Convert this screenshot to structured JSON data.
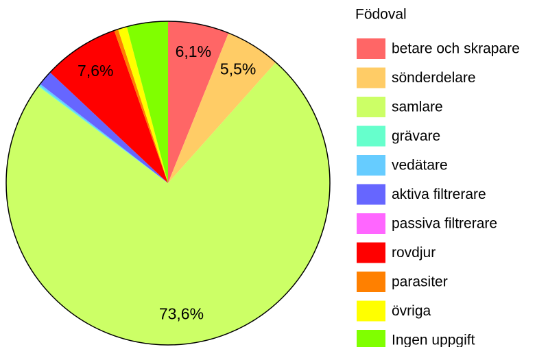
{
  "chart_data": {
    "type": "pie",
    "legend_title": "Födoval",
    "categories": [
      "betare och skrapare",
      "sönderdelare",
      "samlare",
      "grävare",
      "vedätare",
      "aktiva filtrerare",
      "passiva filtrerare",
      "rovdjur",
      "parasiter",
      "övriga",
      "Ingen uppgift"
    ],
    "values": [
      6.1,
      5.5,
      73.6,
      0.1,
      0.2,
      1.5,
      0,
      7.6,
      0.4,
      0.9,
      4.1
    ],
    "value_labels": [
      "6,1%",
      "5,5%",
      "73,6%",
      null,
      null,
      null,
      null,
      "7,6%",
      null,
      null,
      null
    ],
    "colors": [
      "#ff6666",
      "#ffcc66",
      "#ccff66",
      "#66ffcc",
      "#66ccff",
      "#6666ff",
      "#ff66ff",
      "#ff0000",
      "#ff8000",
      "#ffff00",
      "#80ff00"
    ],
    "legend": "right"
  }
}
